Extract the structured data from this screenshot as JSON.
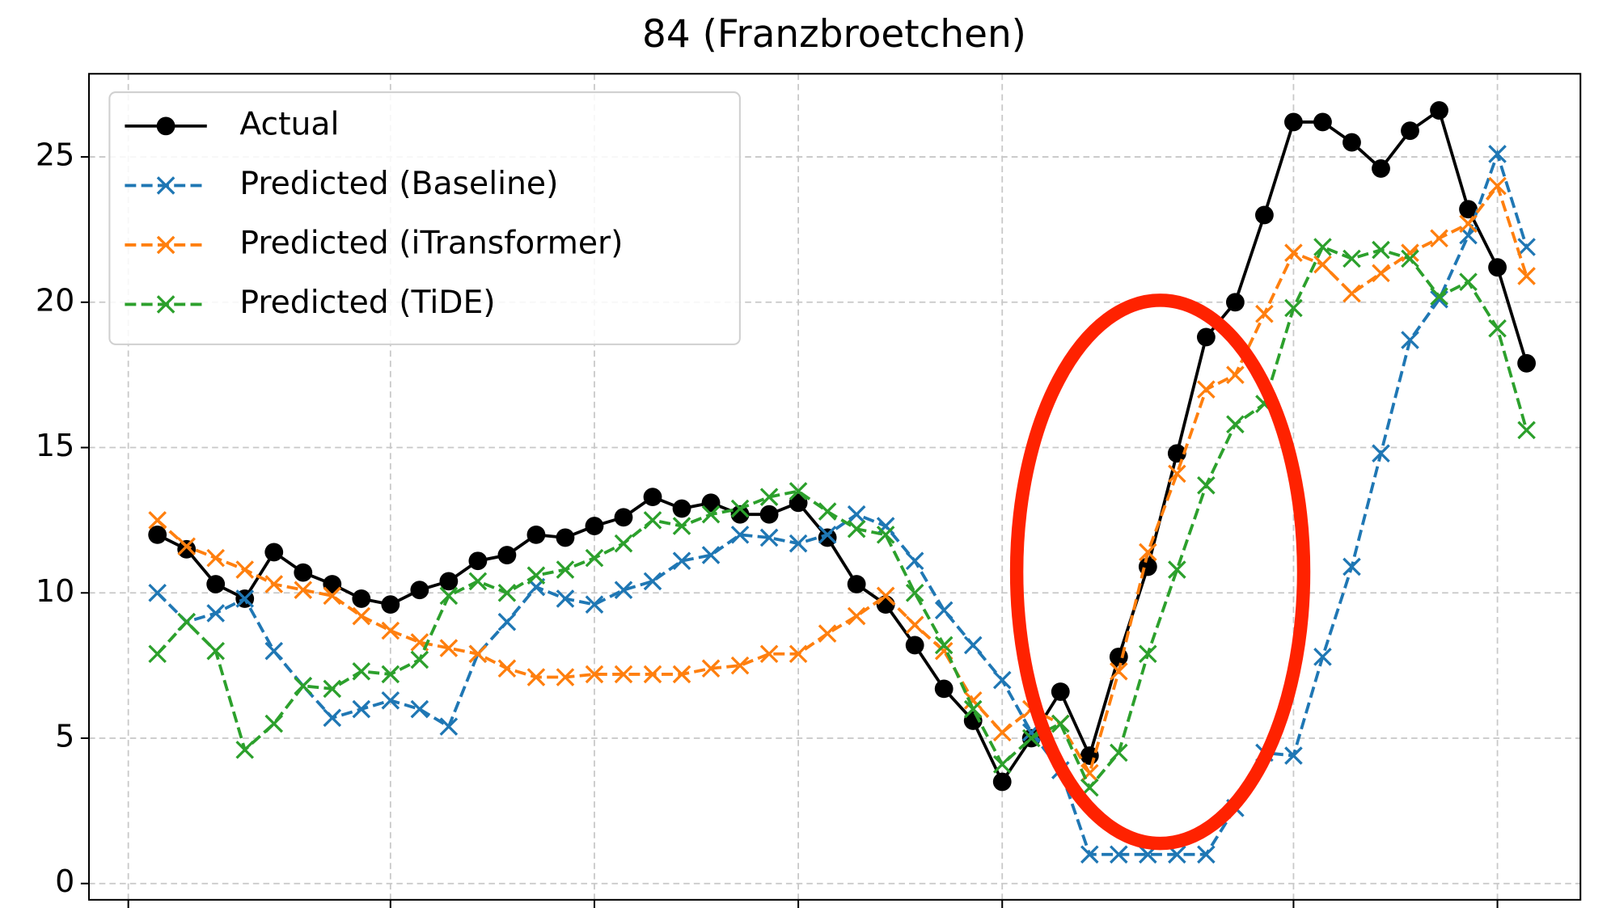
{
  "chart_data": {
    "type": "line",
    "title": "84 (Franzbroetchen)",
    "x": [
      0,
      1,
      2,
      3,
      4,
      5,
      6,
      7,
      8,
      9,
      10,
      11,
      12,
      13,
      14,
      15,
      16,
      17,
      18,
      19,
      20,
      21,
      22,
      23,
      24,
      25,
      26,
      27,
      28,
      29,
      30,
      31,
      32,
      33,
      34,
      35,
      36,
      37,
      38,
      39,
      40,
      41,
      42,
      43,
      44,
      45,
      46,
      47
    ],
    "series": [
      {
        "name": "Actual",
        "color": "#000000",
        "linestyle": "solid",
        "marker": "o",
        "values": [
          12.0,
          11.5,
          10.3,
          9.8,
          11.4,
          10.7,
          10.3,
          9.8,
          9.6,
          10.1,
          10.4,
          11.1,
          11.3,
          12.0,
          11.9,
          12.3,
          12.6,
          13.3,
          12.9,
          13.1,
          12.7,
          12.7,
          13.1,
          11.9,
          10.3,
          9.6,
          8.2,
          6.7,
          5.6,
          3.5,
          5.0,
          6.6,
          4.4,
          7.8,
          10.9,
          14.8,
          18.8,
          20.0,
          23.0,
          26.2,
          26.2,
          25.5,
          24.6,
          25.9,
          26.6,
          23.2,
          21.2,
          17.9
        ]
      },
      {
        "name": "Predicted (Baseline)",
        "color": "#1f77b4",
        "linestyle": "dashed",
        "marker": "x",
        "values": [
          10.0,
          9.0,
          9.3,
          9.8,
          8.0,
          6.8,
          5.7,
          6.0,
          6.3,
          6.0,
          5.4,
          7.9,
          9.0,
          10.2,
          9.8,
          9.6,
          10.1,
          10.4,
          11.1,
          11.3,
          12.0,
          11.9,
          11.7,
          12.0,
          12.7,
          12.3,
          11.1,
          9.4,
          8.2,
          7.0,
          5.2,
          3.9,
          1.0,
          1.0,
          1.0,
          1.0,
          1.0,
          2.6,
          4.5,
          4.4,
          7.8,
          10.9,
          14.8,
          18.7,
          20.1,
          22.3,
          25.1,
          21.9
        ]
      },
      {
        "name": "Predicted (iTransformer)",
        "color": "#ff7f0e",
        "linestyle": "dashed",
        "marker": "x",
        "values": [
          12.5,
          11.6,
          11.2,
          10.8,
          10.3,
          10.1,
          9.9,
          9.2,
          8.7,
          8.3,
          8.1,
          7.9,
          7.4,
          7.1,
          7.1,
          7.2,
          7.2,
          7.2,
          7.2,
          7.4,
          7.5,
          7.9,
          7.9,
          8.6,
          9.2,
          9.9,
          8.9,
          8.0,
          6.3,
          5.2,
          6.0,
          5.5,
          3.8,
          7.3,
          11.4,
          14.1,
          17.0,
          17.5,
          19.6,
          21.7,
          21.3,
          20.3,
          21.0,
          21.7,
          22.2,
          22.7,
          24.0,
          20.9
        ]
      },
      {
        "name": "Predicted (TiDE)",
        "color": "#2ca02c",
        "linestyle": "dashed",
        "marker": "x",
        "values": [
          7.9,
          9.0,
          8.0,
          4.6,
          5.5,
          6.8,
          6.7,
          7.3,
          7.2,
          7.7,
          9.9,
          10.4,
          10.0,
          10.6,
          10.8,
          11.2,
          11.7,
          12.5,
          12.3,
          12.7,
          12.9,
          13.3,
          13.5,
          12.8,
          12.2,
          12.0,
          10.0,
          8.2,
          6.0,
          4.1,
          5.0,
          5.5,
          3.3,
          4.5,
          7.9,
          10.8,
          13.7,
          15.8,
          16.5,
          19.8,
          21.9,
          21.5,
          21.8,
          21.5,
          20.2,
          20.7,
          19.1,
          15.6
        ]
      }
    ],
    "xlim": [
      -2.35,
      48.85
    ],
    "xticks": [
      -1,
      8,
      15,
      22,
      29,
      39,
      46
    ],
    "ylim": [
      -0.56,
      27.86
    ],
    "yticks": [
      0,
      5,
      10,
      15,
      20,
      25
    ],
    "grid": true,
    "legend": "upper left"
  }
}
